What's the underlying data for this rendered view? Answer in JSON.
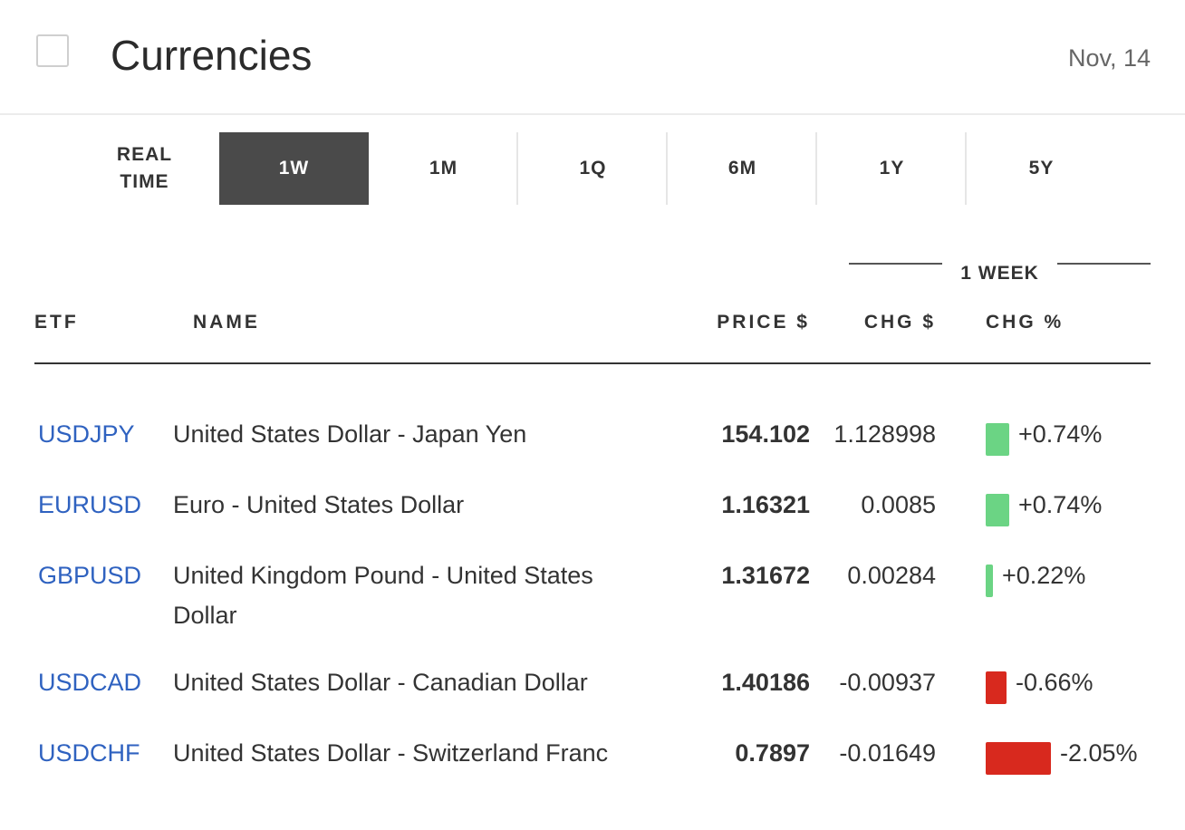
{
  "header": {
    "title": "Currencies",
    "date": "Nov, 14"
  },
  "tabs": [
    {
      "label": "REAL\nTIME",
      "active": false
    },
    {
      "label": "1W",
      "active": true
    },
    {
      "label": "1M",
      "active": false
    },
    {
      "label": "1Q",
      "active": false
    },
    {
      "label": "6M",
      "active": false
    },
    {
      "label": "1Y",
      "active": false
    },
    {
      "label": "5Y",
      "active": false
    }
  ],
  "table": {
    "group_label": "1 WEEK",
    "columns": {
      "etf": "ETF",
      "name": "NAME",
      "price": "PRICE $",
      "chg": "CHG $",
      "chg_pct": "CHG %"
    },
    "rows": [
      {
        "etf": "USDJPY",
        "name": "United States Dollar - Japan Yen",
        "price": "154.102",
        "chg": "1.128998",
        "chg_pct": "+0.74%",
        "chg_value": 0.74
      },
      {
        "etf": "EURUSD",
        "name": "Euro - United States Dollar",
        "price": "1.16321",
        "chg": "0.0085",
        "chg_pct": "+0.74%",
        "chg_value": 0.74
      },
      {
        "etf": "GBPUSD",
        "name": "United Kingdom Pound - United States Dollar",
        "price": "1.31672",
        "chg": "0.00284",
        "chg_pct": "+0.22%",
        "chg_value": 0.22
      },
      {
        "etf": "USDCAD",
        "name": "United States Dollar - Canadian Dollar",
        "price": "1.40186",
        "chg": "-0.00937",
        "chg_pct": "-0.66%",
        "chg_value": -0.66
      },
      {
        "etf": "USDCHF",
        "name": "United States Dollar - Switzerland Franc",
        "price": "0.7897",
        "chg": "-0.01649",
        "chg_pct": "-2.05%",
        "chg_value": -2.05
      }
    ]
  },
  "colors": {
    "positive": "#6bd484",
    "negative": "#d8291e",
    "link": "#2f62c0",
    "active_tab": "#4a4a4a"
  }
}
